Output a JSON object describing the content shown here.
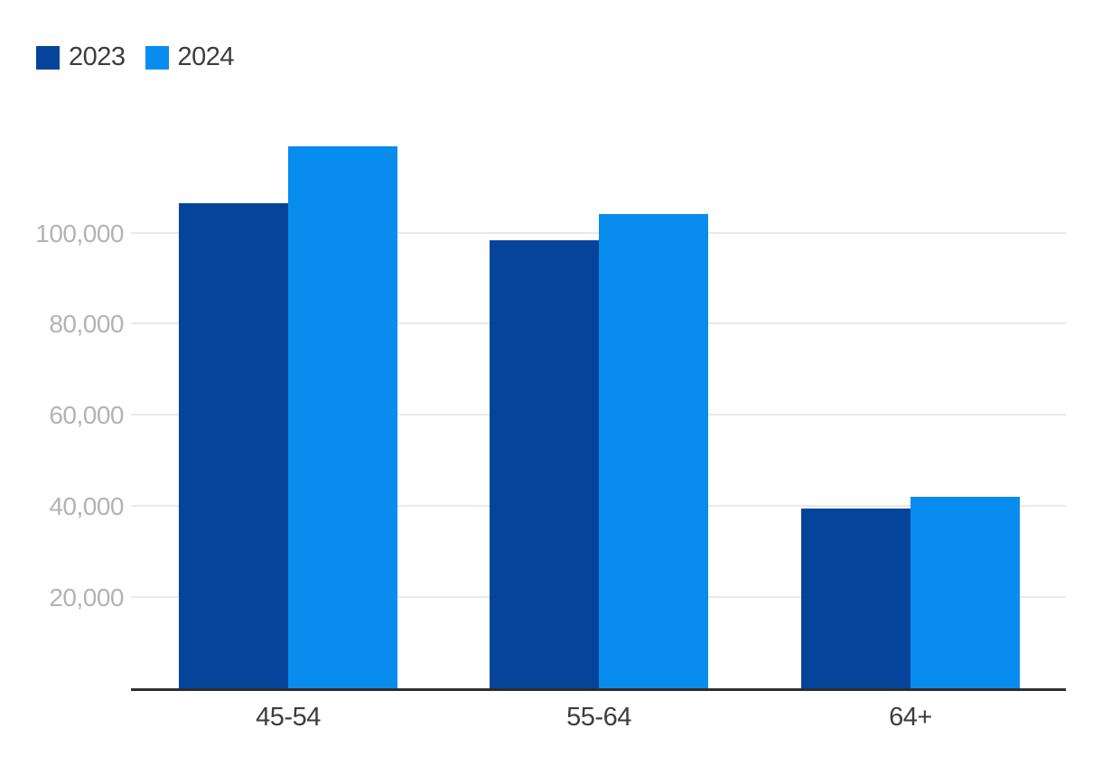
{
  "chart_data": {
    "type": "bar",
    "categories": [
      "45-54",
      "55-64",
      "64+"
    ],
    "series": [
      {
        "name": "2023",
        "color": "#04449b",
        "values": [
          106500,
          98300,
          39500
        ]
      },
      {
        "name": "2024",
        "color": "#088cee",
        "values": [
          119000,
          104000,
          42000
        ]
      }
    ],
    "title": "",
    "xlabel": "",
    "ylabel": "",
    "ylim": [
      0,
      120000
    ],
    "yticks": [
      {
        "value": 20000,
        "label": "20,000"
      },
      {
        "value": 40000,
        "label": "40,000"
      },
      {
        "value": 60000,
        "label": "60,000"
      },
      {
        "value": 80000,
        "label": "80,000"
      },
      {
        "value": 100000,
        "label": "100,000"
      }
    ],
    "grid": true,
    "legend_position": "top-left",
    "colors": {
      "axis": "#2e2e2e",
      "gridline": "#e9e9e9",
      "ytick_label": "#b3b3b3",
      "xtick_label": "#3d3d3d",
      "background": "#ffffff"
    }
  }
}
